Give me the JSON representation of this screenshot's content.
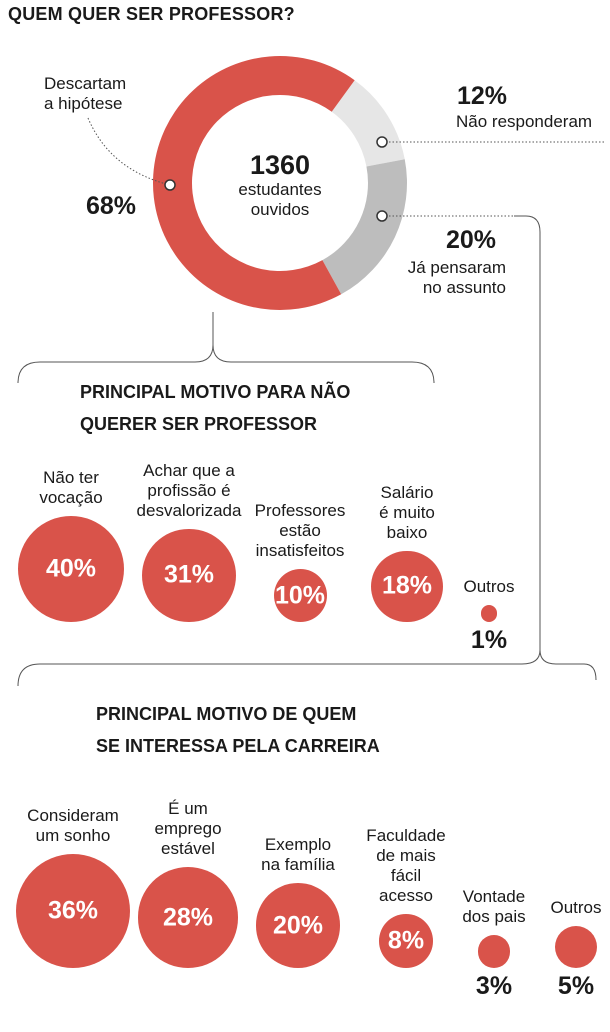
{
  "title": "QUEM QUER SER PROFESSOR?",
  "center": {
    "number": "1360",
    "line1": "estudantes",
    "line2": "ouvidos"
  },
  "donut_labels": {
    "descartam": {
      "line1": "Descartam",
      "line2": "a hipótese",
      "value": "68%"
    },
    "nao_responderam": {
      "value": "12%",
      "label": "Não responderam"
    },
    "ja_pensaram": {
      "value": "20%",
      "line1": "Já pensaram",
      "line2": "no assunto"
    }
  },
  "section1": {
    "title_line1": "PRINCIPAL MOTIVO PARA NÃO",
    "title_line2": "QUERER SER PROFESSOR"
  },
  "section2": {
    "title_line1": "PRINCIPAL MOTIVO DE QUEM",
    "title_line2": "SE INTERESSA PELA CARREIRA"
  },
  "chart_data": [
    {
      "type": "pie",
      "title": "QUEM QUER SER PROFESSOR?",
      "total": 1360,
      "categories": [
        "Descartam a hipótese",
        "Não responderam",
        "Já pensaram no assunto"
      ],
      "values": [
        68,
        12,
        20
      ],
      "colors": [
        "#d9534a",
        "#e6e6e6",
        "#bdbdbd"
      ]
    },
    {
      "type": "bubble",
      "title": "PRINCIPAL MOTIVO PARA NÃO QUERER SER PROFESSOR",
      "categories": [
        [
          "Não ter",
          "vocação"
        ],
        [
          "Achar que a",
          "profissão é",
          "desvalorizada"
        ],
        [
          "Professores",
          "estão",
          "insatisfeitos"
        ],
        [
          "Salário",
          "é muito",
          "baixo"
        ],
        [
          "Outros"
        ]
      ],
      "values": [
        40,
        31,
        10,
        18,
        1
      ],
      "labels": [
        "40%",
        "31%",
        "10%",
        "18%",
        "1%"
      ],
      "color": "#d9534a"
    },
    {
      "type": "bubble",
      "title": "PRINCIPAL MOTIVO DE QUEM SE INTERESSA PELA CARREIRA",
      "categories": [
        [
          "Consideram",
          "um sonho"
        ],
        [
          "É um",
          "emprego",
          "estável"
        ],
        [
          "Exemplo",
          "na família"
        ],
        [
          "Faculdade",
          "de mais",
          "fácil",
          "acesso"
        ],
        [
          "Vontade",
          "dos pais"
        ],
        [
          "Outros"
        ]
      ],
      "values": [
        36,
        28,
        20,
        8,
        3,
        5
      ],
      "labels": [
        "36%",
        "28%",
        "20%",
        "8%",
        "3%",
        "5%"
      ],
      "color": "#d9534a"
    }
  ]
}
